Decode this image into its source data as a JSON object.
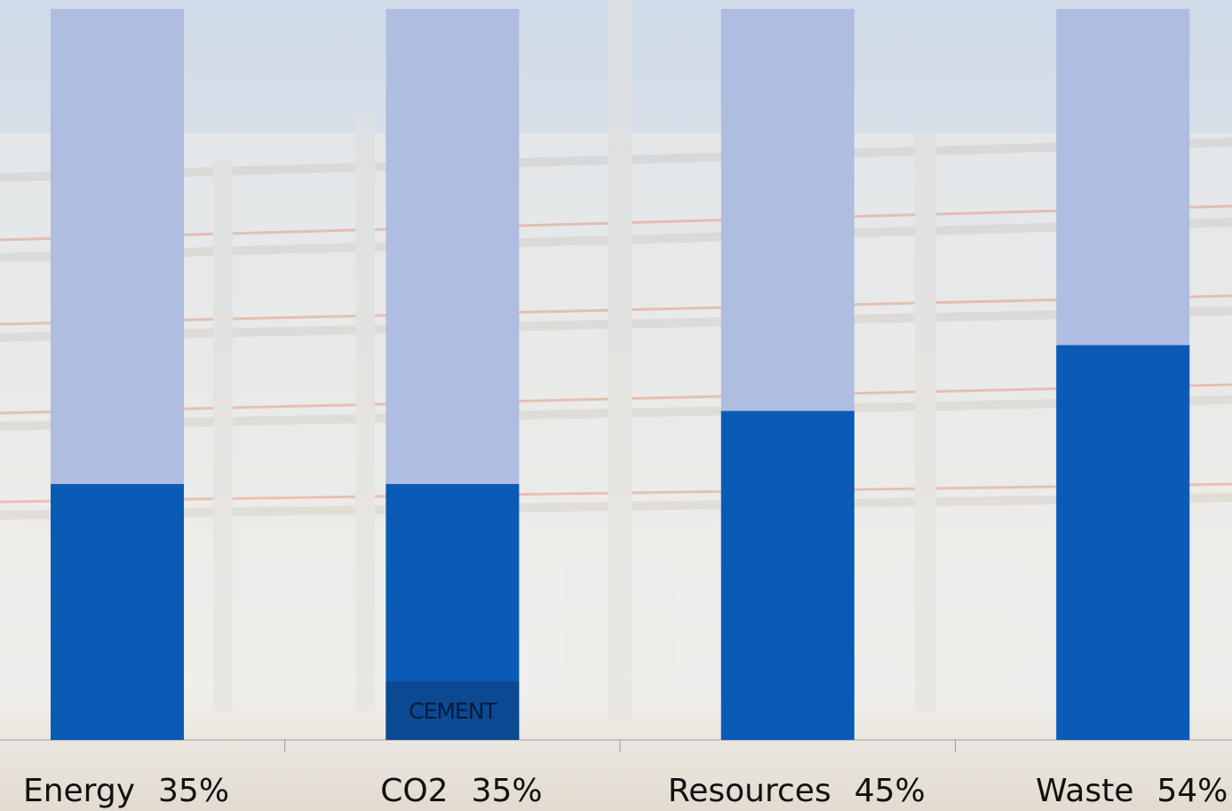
{
  "chart_data": {
    "type": "bar",
    "categories": [
      "Energy",
      "CO2",
      "Resources",
      "Waste"
    ],
    "values": [
      35,
      35,
      45,
      54
    ],
    "value_labels": [
      "35%",
      "35%",
      "45%",
      "54%"
    ],
    "color": "#0a5bb5",
    "track_color": "#aebde0",
    "ylim": [
      0,
      100
    ],
    "annotation": {
      "text": "CEMENT",
      "category": "CO2",
      "value": 8,
      "color": "#0b4a92"
    }
  }
}
